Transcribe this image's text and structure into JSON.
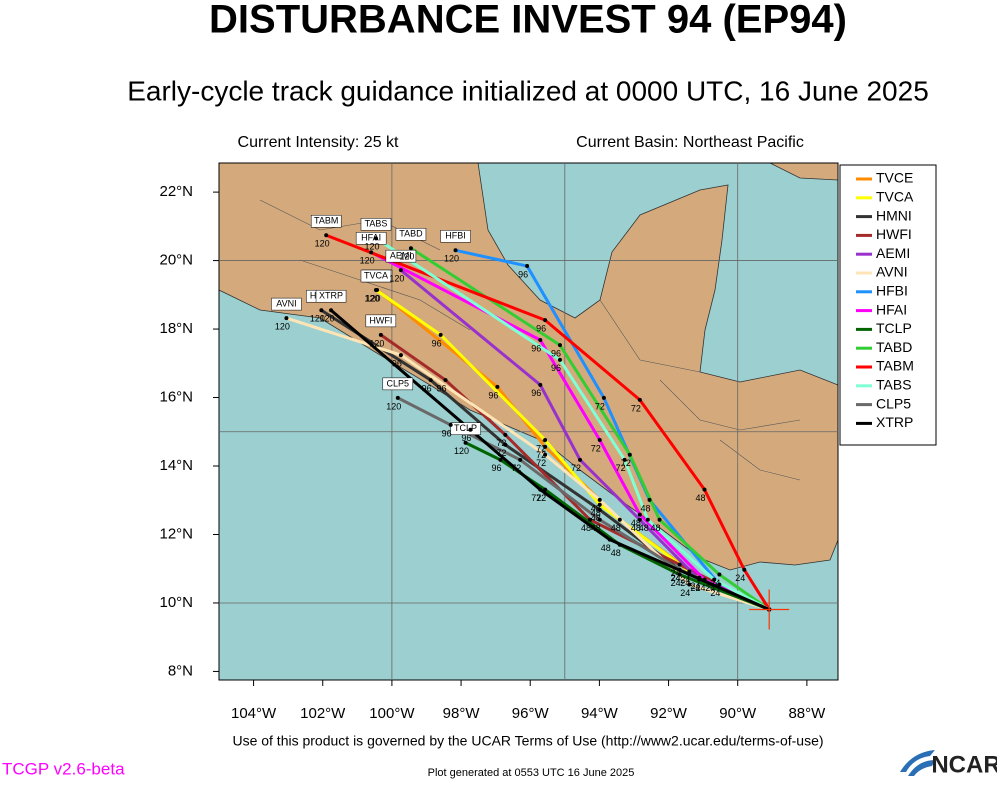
{
  "chart_data": {
    "type": "track",
    "title": "DISTURBANCE INVEST 94 (EP94)",
    "subtitle": "Early-cycle track guidance initialized at 0000 UTC, 16 June 2025",
    "intensity": "Current Intensity: 25 kt",
    "basin": "Current Basin: Northeast Pacific",
    "terms": "Use of this product is governed by the UCAR Terms of Use (http://www2.ucar.edu/terms-of-use)",
    "version": "TCGP v2.6-beta",
    "generated": "Plot generated at 0553 UTC   16 June 2025",
    "logo": "NCAR",
    "xlim": [
      -105,
      -87.1
    ],
    "ylim": [
      7.75,
      22.85
    ],
    "xticks": [
      {
        "value": -104,
        "label": "104°W"
      },
      {
        "value": -102,
        "label": "102°W"
      },
      {
        "value": -100,
        "label": "100°W"
      },
      {
        "value": -98,
        "label": "98°W"
      },
      {
        "value": -96,
        "label": "96°W"
      },
      {
        "value": -94,
        "label": "94°W"
      },
      {
        "value": -92,
        "label": "92°W"
      },
      {
        "value": -90,
        "label": "90°W"
      },
      {
        "value": -88,
        "label": "88°W"
      }
    ],
    "yticks": [
      {
        "value": 8,
        "label": "8°N"
      },
      {
        "value": 10,
        "label": "10°N"
      },
      {
        "value": 12,
        "label": "12°N"
      },
      {
        "value": 14,
        "label": "14°N"
      },
      {
        "value": 16,
        "label": "16°N"
      },
      {
        "value": 18,
        "label": "18°N"
      },
      {
        "value": 20,
        "label": "20°N"
      },
      {
        "value": 22,
        "label": "22°N"
      }
    ],
    "grid_lons": [
      -100,
      -95,
      -90
    ],
    "grid_lats": [
      10,
      15,
      20
    ],
    "hour_labels": [
      null,
      24,
      48,
      72,
      96,
      120
    ],
    "series": [
      {
        "name": "TVCE",
        "color": "#ff8c00",
        "lon": [
          -89.09,
          -91.11,
          -93.41,
          -95.57,
          -96.95,
          -100.43
        ],
        "lat": [
          9.81,
          10.74,
          12.43,
          14.56,
          16.31,
          19.14
        ]
      },
      {
        "name": "TVCA",
        "color": "#ffff00",
        "lon": [
          -89.09,
          -91.4,
          -93.99,
          -95.57,
          -98.59,
          -100.46
        ],
        "lat": [
          9.81,
          10.92,
          12.87,
          14.76,
          17.83,
          19.14
        ]
      },
      {
        "name": "HMNI",
        "color": "#333333",
        "lon": [
          -89.09,
          -91.68,
          -93.99,
          -96.72,
          -98.88,
          -102.04
        ],
        "lat": [
          9.81,
          10.97,
          12.72,
          14.62,
          16.51,
          18.55
        ]
      },
      {
        "name": "HWFI",
        "color": "#a52a2a",
        "lon": [
          -89.09,
          -91.68,
          -94.27,
          -96.72,
          -98.45,
          -100.32
        ],
        "lat": [
          9.81,
          11.12,
          12.43,
          14.91,
          16.51,
          17.83
        ]
      },
      {
        "name": "AEMI",
        "color": "#9932cc",
        "lon": [
          -89.09,
          -91.11,
          -92.83,
          -94.56,
          -95.71,
          -99.74
        ],
        "lat": [
          9.81,
          10.68,
          12.43,
          14.18,
          16.37,
          19.72
        ]
      },
      {
        "name": "AVNI",
        "color": "#ffe4b5",
        "lon": [
          -89.09,
          -91.4,
          -93.99,
          -95.57,
          -99.74,
          -103.05
        ],
        "lat": [
          9.81,
          10.54,
          13.01,
          14.33,
          17.24,
          18.32
        ]
      },
      {
        "name": "HFBI",
        "color": "#1e90ff",
        "lon": [
          -89.09,
          -90.53,
          -92.55,
          -93.87,
          -96.09,
          -98.16
        ],
        "lat": [
          9.81,
          10.54,
          13.01,
          15.99,
          19.84,
          20.3
        ]
      },
      {
        "name": "HFAI",
        "color": "#ff00ff",
        "lon": [
          -89.09,
          -90.96,
          -92.83,
          -93.99,
          -95.71,
          -100.6
        ],
        "lat": [
          9.81,
          10.68,
          12.58,
          14.76,
          17.68,
          20.24
        ]
      },
      {
        "name": "TCLP",
        "color": "#006400",
        "lon": [
          -89.09,
          -91.68,
          -93.41,
          -95.57,
          -96.86,
          -97.87
        ],
        "lat": [
          9.81,
          10.83,
          11.7,
          13.31,
          14.18,
          14.68
        ]
      },
      {
        "name": "TABD",
        "color": "#32cd32",
        "lon": [
          -89.09,
          -90.53,
          -92.26,
          -93.12,
          -95.14,
          -99.45
        ],
        "lat": [
          9.81,
          10.83,
          12.43,
          14.33,
          17.53,
          20.36
        ]
      },
      {
        "name": "TABM",
        "color": "#ff0000",
        "lon": [
          -89.09,
          -89.81,
          -90.96,
          -92.83,
          -95.57,
          -101.9
        ],
        "lat": [
          9.81,
          10.97,
          13.31,
          15.93,
          18.26,
          20.74
        ]
      },
      {
        "name": "TABS",
        "color": "#7fffd4",
        "lon": [
          -89.09,
          -90.68,
          -92.6,
          -93.27,
          -95.14,
          -100.46
        ],
        "lat": [
          9.81,
          10.68,
          12.43,
          14.18,
          17.1,
          20.65
        ]
      },
      {
        "name": "CLP5",
        "color": "#696969",
        "lon": [
          -89.09,
          -91.68,
          -93.99,
          -96.29,
          -98.3,
          -99.83
        ],
        "lat": [
          9.81,
          10.97,
          12.43,
          14.18,
          15.2,
          15.99
        ]
      },
      {
        "name": "XTRP",
        "color": "#000000",
        "lon": [
          -89.09,
          -91.4,
          -93.7,
          -95.71,
          -97.73,
          -101.76
        ],
        "lat": [
          9.81,
          10.83,
          11.85,
          13.31,
          15.06,
          18.55
        ]
      }
    ]
  }
}
